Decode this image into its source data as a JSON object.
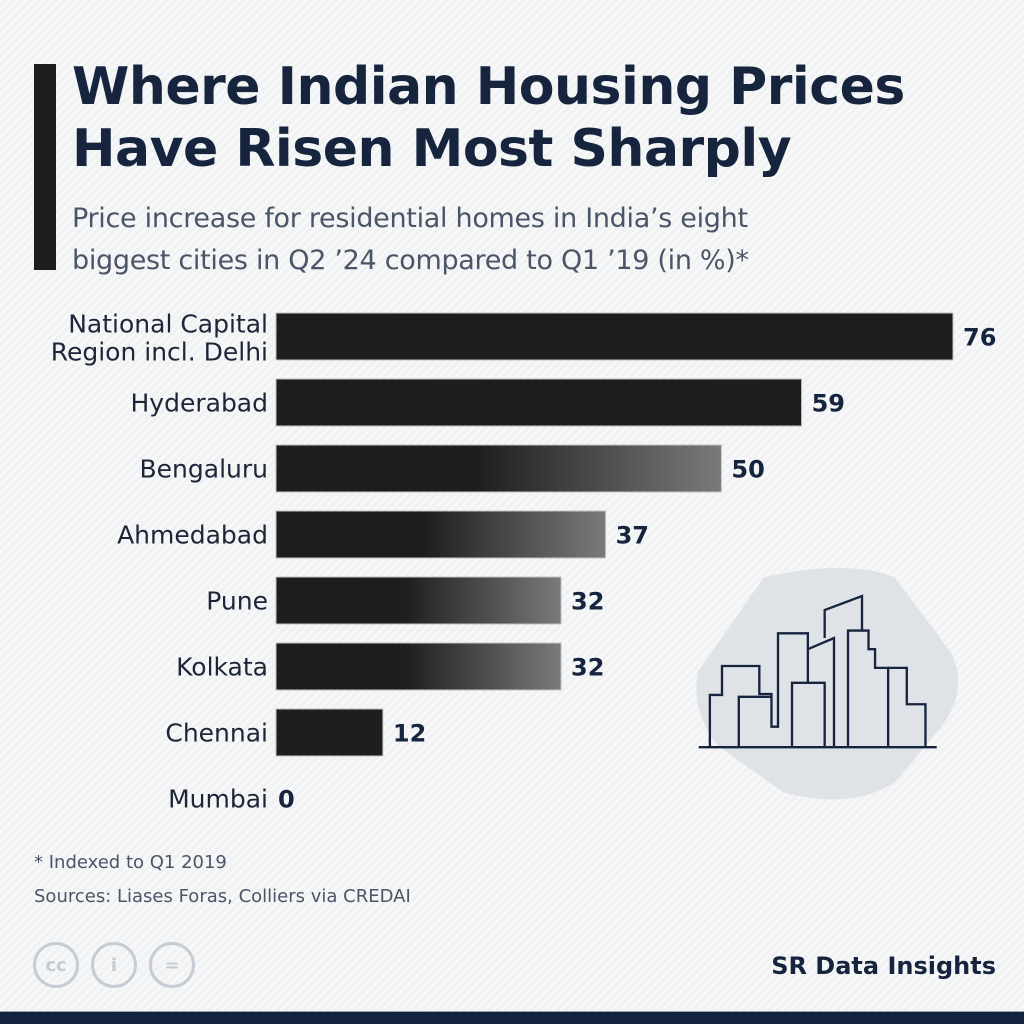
{
  "header": {
    "title_line1": "Where Indian Housing Prices",
    "title_line2": "Have Risen Most Sharply",
    "subtitle_line1": "Price increase for residential homes in India’s eight",
    "subtitle_line2": "biggest cities in Q2 ’24 compared to Q1 ’19 (in %)*"
  },
  "chart_data": {
    "type": "bar",
    "orientation": "horizontal",
    "title": "Where Indian Housing Prices Have Risen Most Sharply",
    "subtitle": "Price increase for residential homes in India’s eight biggest cities in Q2 ’24 compared to Q1 ’19 (in %)*",
    "xlabel": "",
    "ylabel": "",
    "unit": "%",
    "categories": [
      [
        "National Capital",
        "Region incl. Delhi"
      ],
      [
        "Hyderabad"
      ],
      [
        "Bengaluru"
      ],
      [
        "Ahmedabad"
      ],
      [
        "Pune"
      ],
      [
        "Kolkata"
      ],
      [
        "Chennai"
      ],
      [
        "Mumbai"
      ]
    ],
    "values": [
      76,
      59,
      50,
      37,
      32,
      32,
      12,
      0
    ],
    "xlim": [
      0,
      76
    ],
    "grid": false,
    "legend": "none",
    "bar_color": "#1e1e1e"
  },
  "footer": {
    "footnote": "* Indexed to Q1 2019",
    "sources": "Sources: Liases Foras, Colliers via CREDAI",
    "license_icons": [
      "cc-icon",
      "attribution-icon",
      "no-derivatives-icon"
    ],
    "license_glyphs": [
      "cc",
      "i",
      "="
    ],
    "brand": "SR Data Insights"
  },
  "illustration": {
    "icon": "city-skyline-icon"
  }
}
